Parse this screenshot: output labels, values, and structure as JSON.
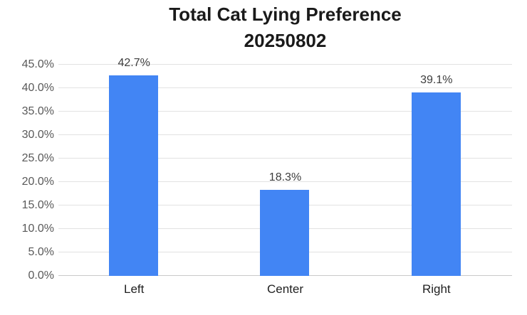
{
  "page": {
    "background_color": "#ffffff"
  },
  "chart_data": {
    "type": "bar",
    "title": "Total Cat Lying Preference",
    "subtitle": "20250802",
    "categories": [
      "Left",
      "Center",
      "Right"
    ],
    "values": [
      42.7,
      18.3,
      39.1
    ],
    "data_labels": [
      "42.7%",
      "18.3%",
      "39.1%"
    ],
    "xlabel": "",
    "ylabel": "",
    "ylim": [
      0,
      45
    ],
    "ytick_step": 5,
    "ytick_labels": [
      "0.0%",
      "5.0%",
      "10.0%",
      "15.0%",
      "20.0%",
      "25.0%",
      "30.0%",
      "35.0%",
      "40.0%",
      "45.0%"
    ],
    "grid": true,
    "legend_position": "none",
    "bar_color": "#4285F4",
    "gridline_color": "#e2e2e2",
    "baseline_color": "#c9c9c9",
    "tick_label_color": "#595959",
    "data_label_color": "#3d3d3d",
    "category_label_color": "#1f1f1f",
    "title_color": "#1a1a1a"
  }
}
